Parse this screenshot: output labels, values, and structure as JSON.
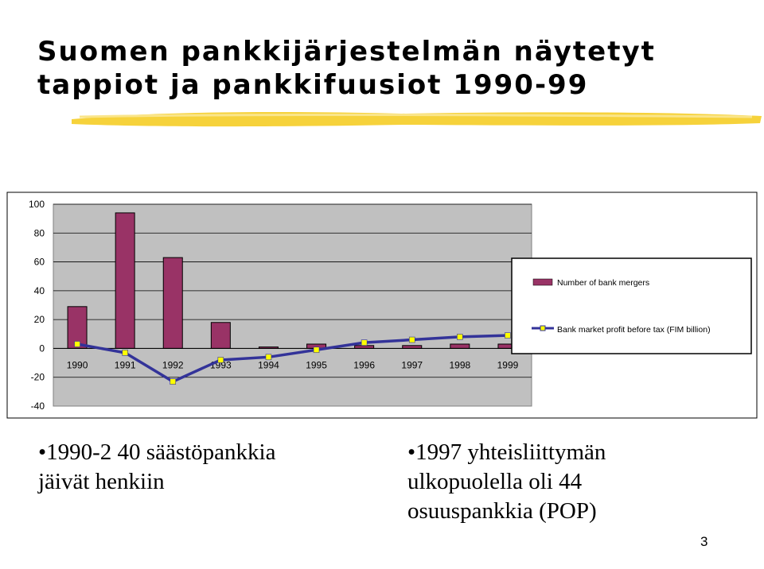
{
  "slide": {
    "title_line1": "Suomen pankkijärjestelmän näytetyt",
    "title_line2": "tappiot ja pankkifuusiot 1990-99",
    "bullet1_line1": "•1990-2 40 säästöpankkia",
    "bullet1_line2": "jäivät henkiin",
    "bullet2_line1": "•1997 yhteisliittymän",
    "bullet2_line2": "ulkopuolella oli 44",
    "bullet2_line3": "osuuspankkia (POP)",
    "page_number": "3",
    "brush_color": "#F5D030"
  },
  "chart_data": {
    "type": "bar",
    "categories": [
      "1990",
      "1991",
      "1992",
      "1993",
      "1994",
      "1995",
      "1996",
      "1997",
      "1998",
      "1999"
    ],
    "ylim": [
      -40,
      100
    ],
    "yticks": [
      100,
      80,
      60,
      40,
      20,
      0,
      -20,
      -40
    ],
    "grid": true,
    "legend_position": "right",
    "series": [
      {
        "name": "Number of bank mergers",
        "kind": "bar",
        "color": "#993366",
        "values": [
          29,
          94,
          63,
          18,
          1,
          3,
          2,
          2,
          3,
          3
        ]
      },
      {
        "name": "Bank market profit before tax (FIM billion)",
        "kind": "line",
        "color": "#333399",
        "marker_color": "#FFFF00",
        "values": [
          3,
          -3,
          -23,
          -8,
          -6,
          -1,
          4,
          6,
          8,
          9
        ]
      }
    ]
  }
}
